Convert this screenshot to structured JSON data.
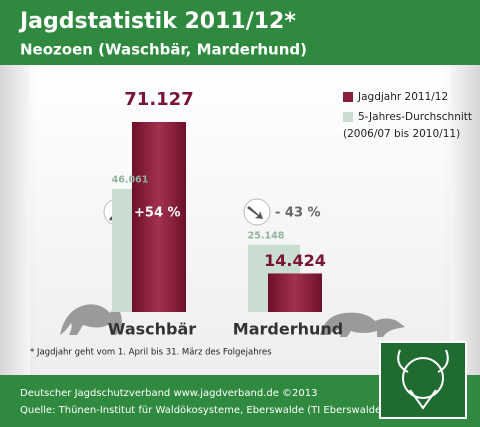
{
  "chart_data": {
    "type": "bar",
    "title": "Jagdstatistik 2011/12*",
    "subtitle": "Neozoen (Waschbär, Marderhund)",
    "categories": [
      "Waschbär",
      "Marderhund"
    ],
    "series": [
      {
        "name": "5-Jahres-Durchschnitt",
        "color": "#c9ddd0",
        "values": [
          46061,
          25148
        ],
        "value_labels": [
          "46.061",
          "25.148"
        ]
      },
      {
        "name": "Jagdjahr 2011/12",
        "color": "#8a1c3c",
        "values": [
          71127,
          14424
        ],
        "value_labels": [
          "71.127",
          "14.424"
        ]
      }
    ],
    "legend_note": "(2006/07 bis 2010/11)",
    "annotations": [
      "+54 %",
      "- 43 %"
    ],
    "footnote": "* Jagdjahr geht vom 1. April bis 31. März des Folgejahres",
    "footer": [
      "Deutscher Jagdschutzverband  www.jagdverband.de  ©2013",
      "Quelle: Thünen-Institut für Waldökosysteme, Eberswalde (TI Eberswalde)"
    ]
  }
}
